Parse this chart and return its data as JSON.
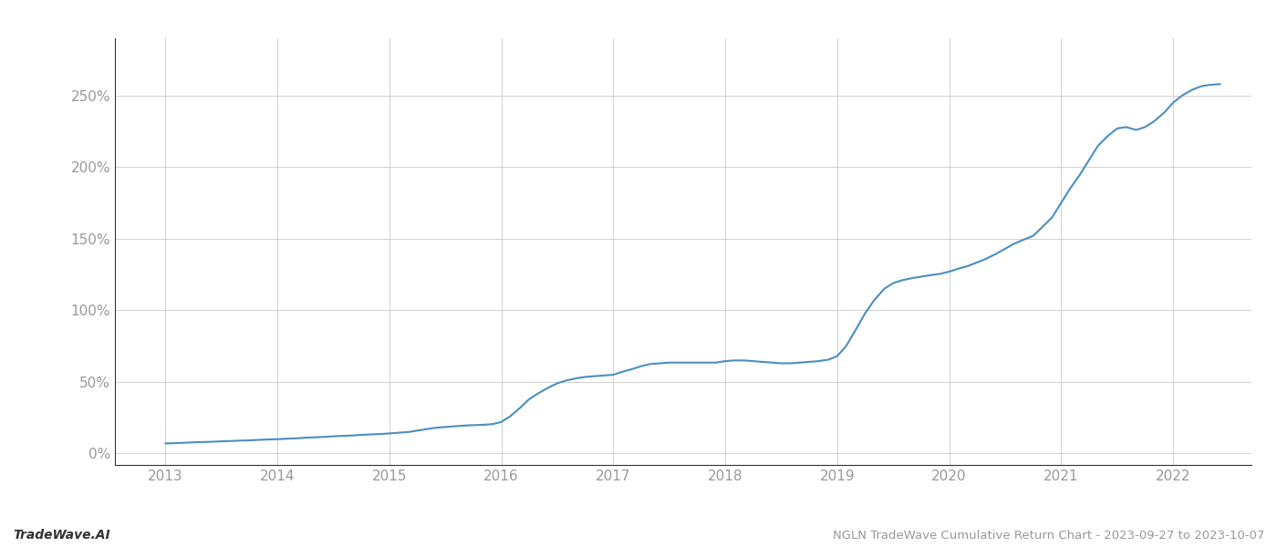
{
  "title": "NGLN TradeWave Cumulative Return Chart - 2023-09-27 to 2023-10-07",
  "watermark": "TradeWave.AI",
  "line_color": "#4a8fc0",
  "background_color": "#ffffff",
  "grid_color": "#cccccc",
  "x_years": [
    2013,
    2014,
    2015,
    2016,
    2017,
    2018,
    2019,
    2020,
    2021,
    2022
  ],
  "data_x": [
    2013.0,
    2013.08,
    2013.17,
    2013.25,
    2013.33,
    2013.42,
    2013.5,
    2013.58,
    2013.67,
    2013.75,
    2013.83,
    2013.92,
    2014.0,
    2014.08,
    2014.17,
    2014.25,
    2014.33,
    2014.42,
    2014.5,
    2014.58,
    2014.67,
    2014.75,
    2014.83,
    2014.92,
    2015.0,
    2015.08,
    2015.17,
    2015.25,
    2015.33,
    2015.42,
    2015.5,
    2015.58,
    2015.67,
    2015.75,
    2015.83,
    2015.92,
    2016.0,
    2016.08,
    2016.17,
    2016.25,
    2016.33,
    2016.42,
    2016.5,
    2016.58,
    2016.67,
    2016.75,
    2016.83,
    2016.92,
    2017.0,
    2017.08,
    2017.17,
    2017.25,
    2017.33,
    2017.42,
    2017.5,
    2017.58,
    2017.67,
    2017.75,
    2017.83,
    2017.92,
    2018.0,
    2018.08,
    2018.17,
    2018.25,
    2018.33,
    2018.42,
    2018.5,
    2018.58,
    2018.67,
    2018.75,
    2018.83,
    2018.92,
    2019.0,
    2019.08,
    2019.17,
    2019.25,
    2019.33,
    2019.42,
    2019.5,
    2019.58,
    2019.67,
    2019.75,
    2019.83,
    2019.92,
    2020.0,
    2020.08,
    2020.17,
    2020.25,
    2020.33,
    2020.42,
    2020.5,
    2020.58,
    2020.67,
    2020.75,
    2020.83,
    2020.92,
    2021.0,
    2021.08,
    2021.17,
    2021.25,
    2021.33,
    2021.42,
    2021.5,
    2021.58,
    2021.67,
    2021.75,
    2021.83,
    2021.92,
    2022.0,
    2022.08,
    2022.17,
    2022.25,
    2022.33,
    2022.42
  ],
  "data_y": [
    7.0,
    7.2,
    7.5,
    7.8,
    8.0,
    8.2,
    8.5,
    8.7,
    9.0,
    9.2,
    9.5,
    9.8,
    10.0,
    10.3,
    10.6,
    11.0,
    11.3,
    11.6,
    12.0,
    12.3,
    12.6,
    13.0,
    13.3,
    13.6,
    14.0,
    14.5,
    15.0,
    16.0,
    17.0,
    18.0,
    18.5,
    19.0,
    19.5,
    19.8,
    20.0,
    20.5,
    22.0,
    26.0,
    32.0,
    38.0,
    42.0,
    46.0,
    49.0,
    51.0,
    52.5,
    53.5,
    54.0,
    54.5,
    55.0,
    57.0,
    59.0,
    61.0,
    62.5,
    63.0,
    63.5,
    63.5,
    63.5,
    63.5,
    63.5,
    63.5,
    64.5,
    65.0,
    65.0,
    64.5,
    64.0,
    63.5,
    63.0,
    63.0,
    63.5,
    64.0,
    64.5,
    65.5,
    68.0,
    75.0,
    87.0,
    98.0,
    107.0,
    115.0,
    119.0,
    121.0,
    122.5,
    123.5,
    124.5,
    125.5,
    127.0,
    129.0,
    131.0,
    133.5,
    136.0,
    139.5,
    143.0,
    146.5,
    149.5,
    152.0,
    158.0,
    165.0,
    175.0,
    185.0,
    195.0,
    205.0,
    215.0,
    222.0,
    227.0,
    228.0,
    226.0,
    228.0,
    232.0,
    238.0,
    245.0,
    250.0,
    254.0,
    256.5,
    257.5,
    258.0
  ],
  "ylim": [
    -8,
    290
  ],
  "yticks": [
    0,
    50,
    100,
    150,
    200,
    250
  ],
  "ytick_labels": [
    "0%",
    "50%",
    "100%",
    "150%",
    "200%",
    "250%"
  ],
  "xlim": [
    2012.55,
    2022.7
  ],
  "tick_color": "#999999",
  "spine_color": "#333333",
  "title_fontsize": 9.5,
  "watermark_fontsize": 10,
  "tick_fontsize": 11
}
